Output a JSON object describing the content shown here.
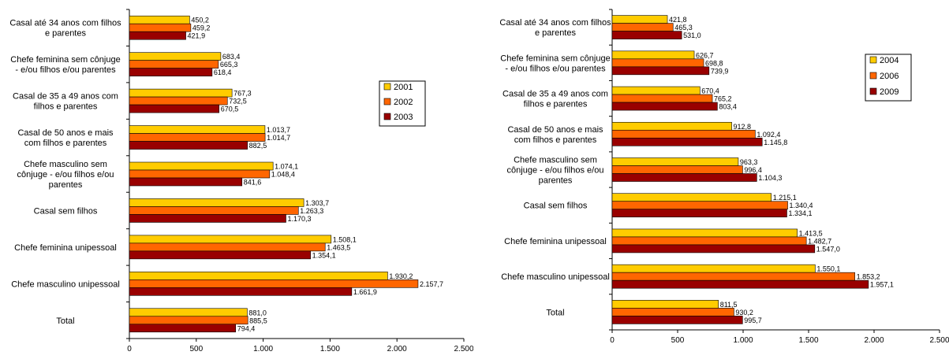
{
  "title_fragment": "",
  "chart_data": [
    {
      "type": "bar",
      "orientation": "horizontal",
      "categories": [
        [
          "Casal até 34 anos com filhos",
          "e parentes"
        ],
        [
          "Chefe feminina sem cônjuge",
          "- e/ou filhos e/ou parentes"
        ],
        [
          "Casal de 35 a 49 anos com",
          "filhos e parentes"
        ],
        [
          "Casal de 50 anos e mais",
          "com filhos e parentes"
        ],
        [
          "Chefe masculino sem",
          "cônjuge - e/ou filhos e/ou",
          "parentes"
        ],
        [
          "Casal sem filhos"
        ],
        [
          "Chefe feminina unipessoal"
        ],
        [
          "Chefe masculino unipessoal"
        ],
        [
          "Total"
        ]
      ],
      "series": [
        {
          "name": "2001",
          "color": "#ffcc00",
          "values": [
            450.2,
            683.4,
            767.3,
            1013.7,
            1074.1,
            1303.7,
            1508.1,
            1930.2,
            881.0
          ],
          "labels": [
            "450,2",
            "683,4",
            "767,3",
            "1.013,7",
            "1.074,1",
            "1.303,7",
            "1.508,1",
            "1.930,2",
            "881,0"
          ]
        },
        {
          "name": "2002",
          "color": "#ff6600",
          "values": [
            459.2,
            665.3,
            732.5,
            1014.7,
            1048.4,
            1263.3,
            1463.5,
            2157.7,
            885.5
          ],
          "labels": [
            "459,2",
            "665,3",
            "732,5",
            "1.014,7",
            "1.048,4",
            "1.263,3",
            "1.463,5",
            "2.157,7",
            "885,5"
          ]
        },
        {
          "name": "2003",
          "color": "#990000",
          "values": [
            421.9,
            618.4,
            670.5,
            882.5,
            841.6,
            1170.3,
            1354.1,
            1661.9,
            794.4
          ],
          "labels": [
            "421,9",
            "618,4",
            "670,5",
            "882,5",
            "841,6",
            "1.170,3",
            "1.354,1",
            "1.661,9",
            "794,4"
          ]
        }
      ],
      "xlim": [
        0,
        2500
      ],
      "xticks": [
        "0",
        "500",
        "1.000",
        "1.500",
        "2.000",
        "2.500"
      ],
      "legend_position": "right"
    },
    {
      "type": "bar",
      "orientation": "horizontal",
      "categories": [
        [
          "Casal até 34 anos com filhos",
          "e parentes"
        ],
        [
          "Chefe feminina sem cônjuge",
          "- e/ou filhos e/ou parentes"
        ],
        [
          "Casal de 35 a 49 anos com",
          "filhos e parentes"
        ],
        [
          "Casal de 50 anos e mais",
          "com filhos e parentes"
        ],
        [
          "Chefe masculino sem",
          "cônjuge - e/ou filhos e/ou",
          "parentes"
        ],
        [
          "Casal sem filhos"
        ],
        [
          "Chefe feminina unipessoal"
        ],
        [
          "Chefe masculino unipessoal"
        ],
        [
          "Total"
        ]
      ],
      "series": [
        {
          "name": "2004",
          "color": "#ffcc00",
          "values": [
            421.8,
            626.7,
            670.4,
            912.8,
            963.3,
            1215.1,
            1413.5,
            1550.1,
            811.5
          ],
          "labels": [
            "421,8",
            "626,7",
            "670,4",
            "912,8",
            "963,3",
            "1.215,1",
            "1.413,5",
            "1.550,1",
            "811,5"
          ]
        },
        {
          "name": "2006",
          "color": "#ff6600",
          "values": [
            465.3,
            698.8,
            765.2,
            1092.4,
            996.4,
            1340.4,
            1482.7,
            1853.2,
            930.2
          ],
          "labels": [
            "465,3",
            "698,8",
            "765,2",
            "1.092,4",
            "996,4",
            "1.340,4",
            "1.482,7",
            "1.853,2",
            "930,2"
          ]
        },
        {
          "name": "2009",
          "color": "#990000",
          "values": [
            531.0,
            739.9,
            803.4,
            1145.8,
            1104.3,
            1334.1,
            1547.0,
            1957.1,
            995.7
          ],
          "labels": [
            "531,0",
            "739,9",
            "803,4",
            "1.145,8",
            "1.104,3",
            "1.334,1",
            "1.547,0",
            "1.957,1",
            "995,7"
          ]
        }
      ],
      "xlim": [
        0,
        2500
      ],
      "xticks": [
        "0",
        "500",
        "1.000",
        "1.500",
        "2.000",
        "2.500"
      ],
      "legend_position": "right"
    }
  ]
}
